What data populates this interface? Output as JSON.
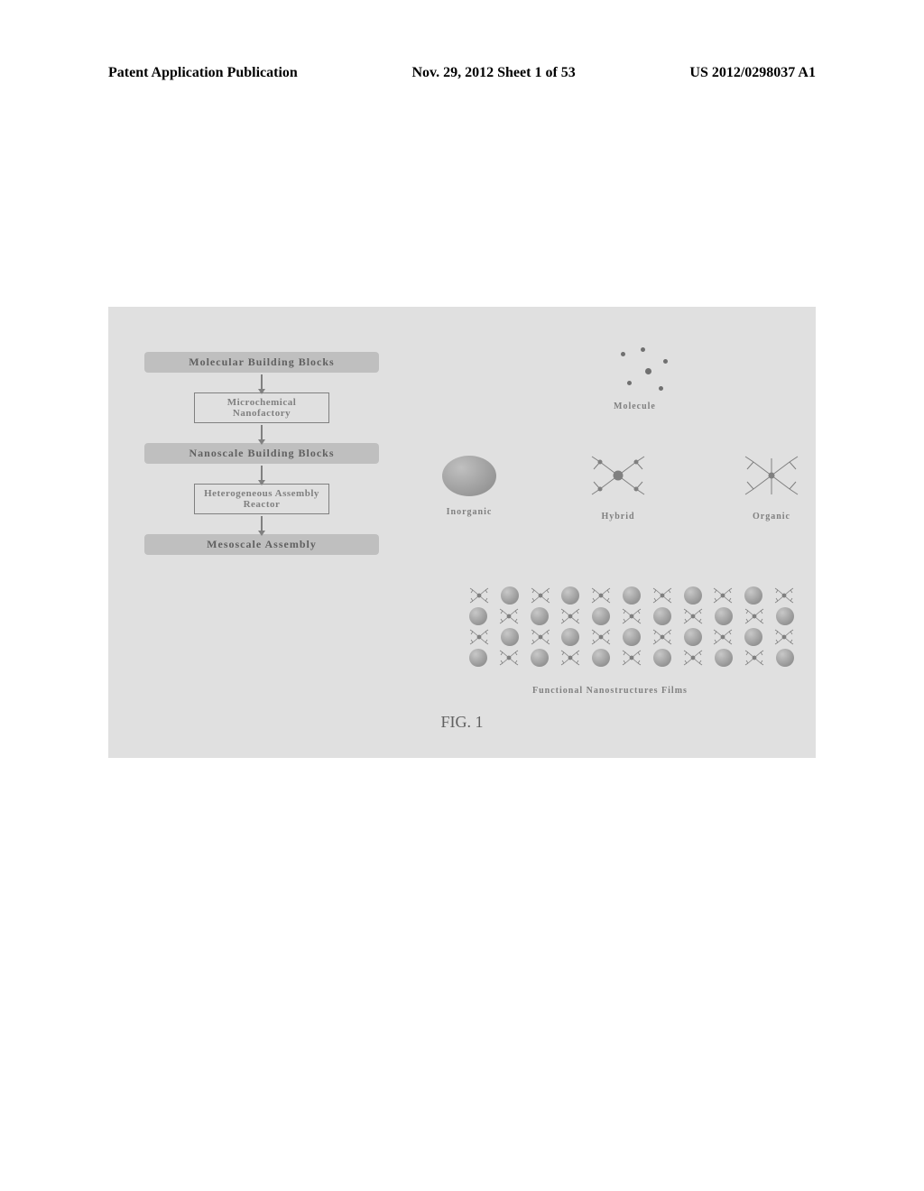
{
  "header": {
    "left": "Patent Application Publication",
    "center": "Nov. 29, 2012  Sheet 1 of 53",
    "right": "US 2012/0298037 A1"
  },
  "flowchart": {
    "steps": [
      {
        "label": "Molecular Building Blocks",
        "kind": "shaded"
      },
      {
        "label": "Microchemical Nanofactory",
        "kind": "outlined"
      },
      {
        "label": "Nanoscale Building Blocks",
        "kind": "shaded"
      },
      {
        "label": "Heterogeneous Assembly Reactor",
        "kind": "outlined"
      },
      {
        "label": "Mesoscale Assembly",
        "kind": "shaded"
      }
    ]
  },
  "molecule_label": "Molecule",
  "nano": {
    "items": [
      {
        "label": "Inorganic",
        "type": "sphere"
      },
      {
        "label": "Hybrid",
        "type": "hybrid"
      },
      {
        "label": "Organic",
        "type": "organic"
      }
    ]
  },
  "film_label": "Functional Nanostructures Films",
  "caption": "FIG. 1",
  "colors": {
    "panel_bg": "#e0e0e0",
    "text_gray": "#808080",
    "box_gray": "#bfbfbf",
    "ball_light": "#c0c0c0",
    "ball_dark": "#888888"
  },
  "film_grid": {
    "rows": 4,
    "pattern_a": [
      "d",
      "b",
      "d",
      "b",
      "d",
      "b",
      "d",
      "b",
      "d",
      "b",
      "d"
    ],
    "pattern_b": [
      "b",
      "d",
      "b",
      "d",
      "b",
      "d",
      "b",
      "d",
      "b",
      "d",
      "b"
    ]
  }
}
